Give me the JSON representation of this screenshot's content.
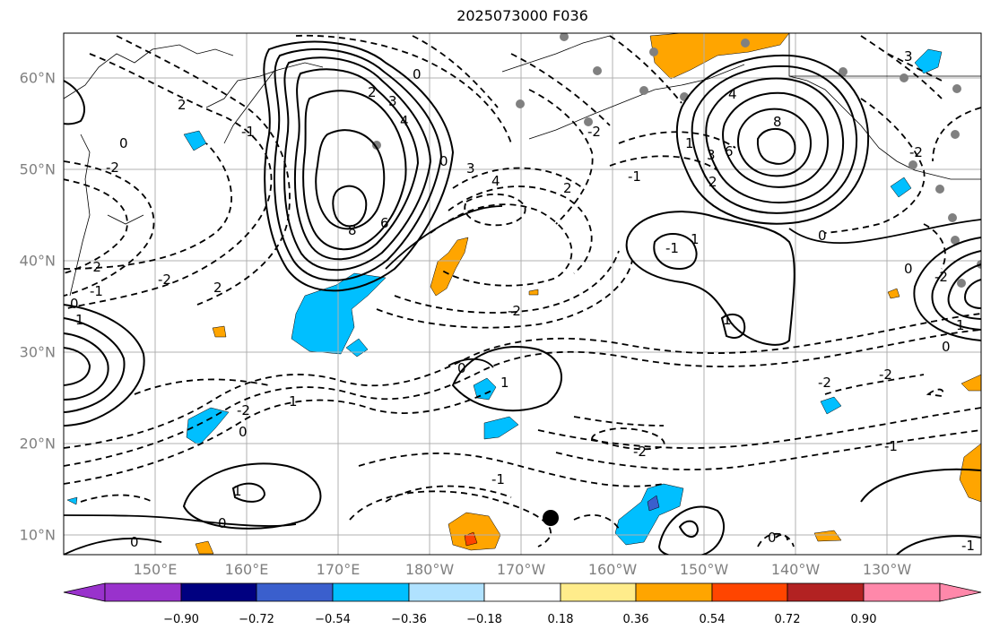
{
  "title": "2025073000 F036",
  "lat_ticks": [
    "60°N",
    "50°N",
    "40°N",
    "30°N",
    "20°N",
    "10°N"
  ],
  "lon_ticks": [
    "150°E",
    "160°E",
    "170°E",
    "180°W",
    "170°W",
    "160°W",
    "150°W",
    "140°W",
    "130°W"
  ],
  "colorbar": {
    "labels": [
      "−0.90",
      "−0.72",
      "−0.54",
      "−0.36",
      "−0.18",
      "0.18",
      "0.36",
      "0.54",
      "0.72",
      "0.90"
    ],
    "colors": [
      "#9932cc",
      "#000080",
      "#3a5fcd",
      "#00bfff",
      "#b0e2ff",
      "#ffffff",
      "#ffec8b",
      "#ffa500",
      "#ff4500",
      "#b22222",
      "#ff88aa"
    ]
  },
  "contour_labels": [
    {
      "text": "0"
    },
    {
      "text": "2"
    },
    {
      "text": "3"
    },
    {
      "text": "4"
    },
    {
      "text": "8"
    },
    {
      "text": "6"
    },
    {
      "text": "2"
    },
    {
      "text": "-2"
    },
    {
      "text": "-1"
    },
    {
      "text": "0"
    },
    {
      "text": "3"
    },
    {
      "text": "4"
    },
    {
      "text": "0"
    },
    {
      "text": "8"
    },
    {
      "text": "6"
    },
    {
      "text": "4"
    },
    {
      "text": "3"
    },
    {
      "text": "2"
    },
    {
      "text": "1"
    },
    {
      "text": "-2"
    },
    {
      "text": "-1"
    },
    {
      "text": "0"
    },
    {
      "text": "1"
    },
    {
      "text": "-1"
    },
    {
      "text": "2"
    },
    {
      "text": "-2"
    },
    {
      "text": "1"
    },
    {
      "text": "0"
    },
    {
      "text": "-2"
    },
    {
      "text": "-1"
    },
    {
      "text": "0"
    },
    {
      "text": "1"
    },
    {
      "text": "-2"
    },
    {
      "text": "2"
    },
    {
      "text": "-2"
    },
    {
      "text": "1"
    },
    {
      "text": "0"
    },
    {
      "text": "-1"
    },
    {
      "text": "-2"
    },
    {
      "text": "1"
    },
    {
      "text": "0"
    },
    {
      "text": "1"
    },
    {
      "text": "-2"
    },
    {
      "text": "0"
    },
    {
      "text": "-1"
    },
    {
      "text": "0"
    },
    {
      "text": "1"
    },
    {
      "text": "0"
    },
    {
      "text": "-2"
    },
    {
      "text": "3"
    },
    {
      "text": "-2"
    },
    {
      "text": "0"
    },
    {
      "text": "-1"
    },
    {
      "text": "-2"
    }
  ]
}
